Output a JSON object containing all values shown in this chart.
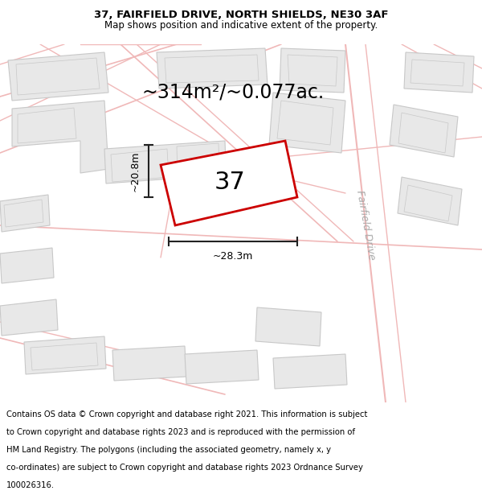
{
  "title_line1": "37, FAIRFIELD DRIVE, NORTH SHIELDS, NE30 3AF",
  "title_line2": "Map shows position and indicative extent of the property.",
  "area_text": "~314m²/~0.077ac.",
  "label_37": "37",
  "label_width": "~28.3m",
  "label_height": "~20.8m",
  "road_label": "Fairfield Drive",
  "footer_lines": [
    "Contains OS data © Crown copyright and database right 2021. This information is subject",
    "to Crown copyright and database rights 2023 and is reproduced with the permission of",
    "HM Land Registry. The polygons (including the associated geometry, namely x, y",
    "co-ordinates) are subject to Crown copyright and database rights 2023 Ordnance Survey",
    "100026316."
  ],
  "map_bg": "#f7f7f7",
  "building_fill": "#e8e8e8",
  "building_edge": "#c8c8c8",
  "road_color": "#f0b8b8",
  "plot_fill": "#ffffff",
  "plot_edge": "#cc0000",
  "plot_edge_width": 2.0,
  "title_fontsize": 9.5,
  "subtitle_fontsize": 8.5,
  "area_fontsize": 17,
  "label_fontsize": 22,
  "footer_fontsize": 7.2,
  "dim_line_color": "#222222",
  "road_label_color": "#aaaaaa",
  "road_lw": 1.2
}
